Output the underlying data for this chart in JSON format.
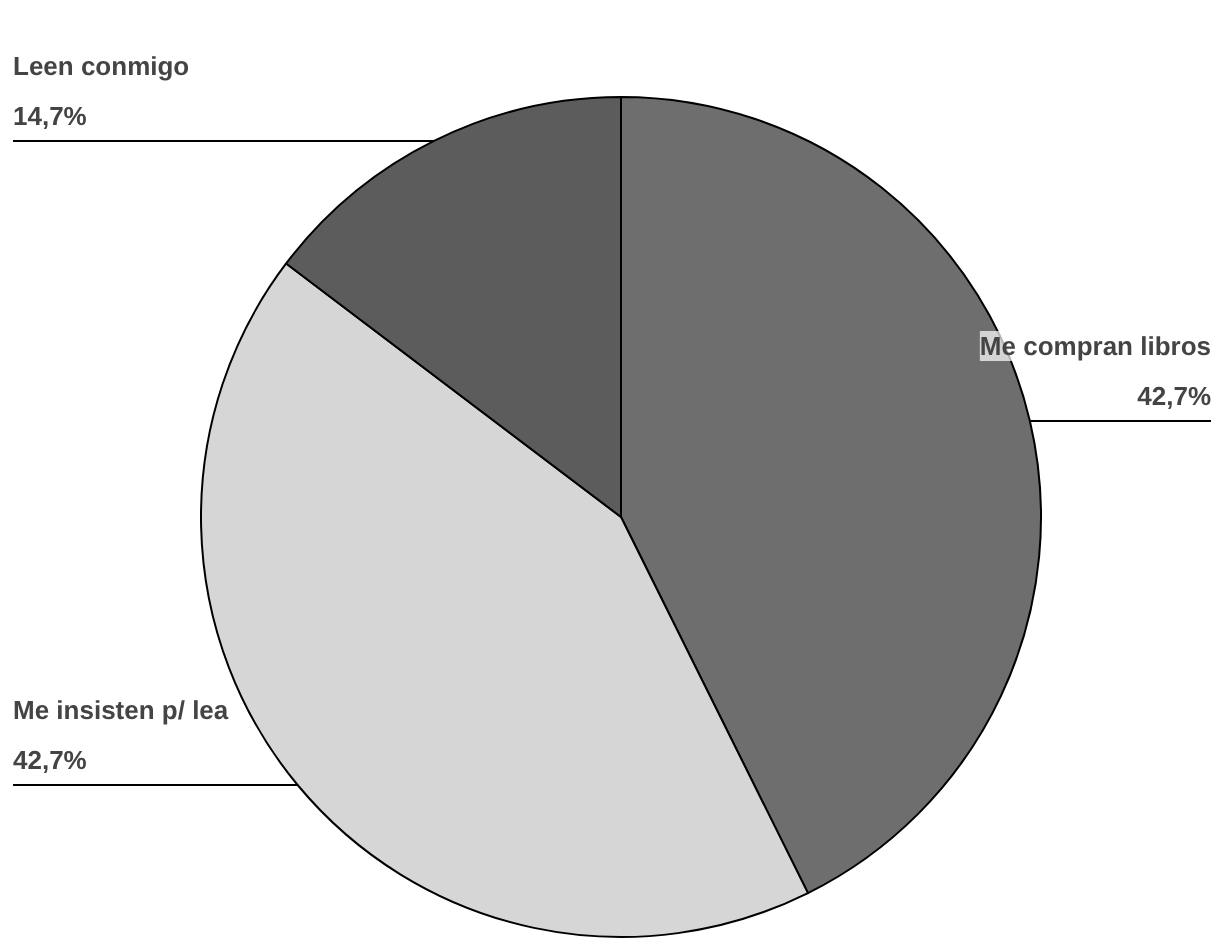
{
  "chart_data": {
    "type": "pie",
    "categories": [
      "Me compran libros",
      "Me insisten p/ lea",
      "Leen conmigo"
    ],
    "values": [
      42.7,
      42.7,
      14.7
    ],
    "value_labels": [
      "42,7%",
      "42,7%",
      "14,7%"
    ],
    "colors": [
      "#6e6e6e",
      "#d6d6d6",
      "#5c5c5c"
    ]
  }
}
